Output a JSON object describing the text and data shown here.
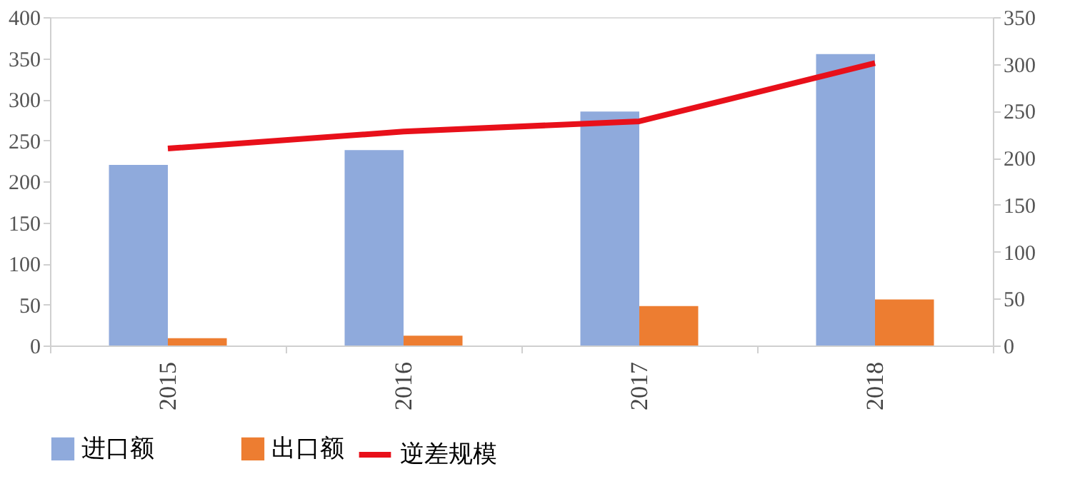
{
  "chart_data": {
    "type": "bar",
    "categories": [
      "2015",
      "2016",
      "2017",
      "2018"
    ],
    "series": [
      {
        "name": "进口额",
        "color": "#8faadc",
        "values": [
          220,
          238,
          285,
          355
        ]
      },
      {
        "name": "出口额",
        "color": "#ed7d31",
        "values": [
          9,
          12,
          48,
          56
        ]
      },
      {
        "name": "逆差规模",
        "color": "#e8101a",
        "type": "line",
        "axis": "y2",
        "values": [
          210,
          228,
          239,
          301
        ]
      }
    ],
    "ylim": [
      0,
      400
    ],
    "yticks": [
      0,
      50,
      100,
      150,
      200,
      250,
      300,
      350,
      400
    ],
    "y2lim": [
      0,
      350
    ],
    "y2ticks": [
      0,
      50,
      100,
      150,
      200,
      250,
      300,
      350
    ],
    "grid": false,
    "legend": "bottom"
  }
}
